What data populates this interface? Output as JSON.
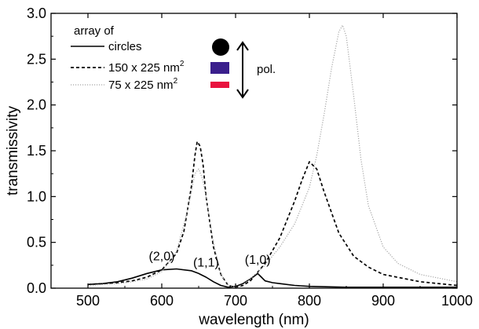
{
  "chart_data": {
    "type": "line",
    "title": "",
    "xlabel": "wavelength (nm)",
    "ylabel": "transmissivity",
    "xlim": [
      450,
      1000
    ],
    "ylim": [
      0,
      3.0
    ],
    "x_ticks": [
      500,
      600,
      700,
      800,
      900,
      1000
    ],
    "y_ticks": [
      0.0,
      0.5,
      1.0,
      1.5,
      2.0,
      2.5,
      3.0
    ],
    "x_tick_labels": [
      "500",
      "600",
      "700",
      "800",
      "900",
      "1000"
    ],
    "y_tick_labels": [
      "0.0",
      "0.5",
      "1.0",
      "1.5",
      "2.0",
      "2.5",
      "3.0"
    ],
    "grid": false,
    "legend_placement": "top-left",
    "legend": {
      "header": "array of",
      "entries": [
        {
          "label": "circles",
          "superscript": "",
          "style": "solid",
          "swatch": "circle",
          "swatch_color": "#000000"
        },
        {
          "label": "150 x 225 nm",
          "superscript": "2",
          "style": "dashed",
          "swatch": "rect",
          "swatch_color": "#3a1f8c"
        },
        {
          "label": "75 x 225 nm",
          "superscript": "2",
          "style": "dotted",
          "swatch": "bar",
          "swatch_color": "#e8133f"
        }
      ],
      "polarization_label": "pol."
    },
    "annotations": [
      {
        "text": "(2,0)",
        "x": 600,
        "y": 0.27
      },
      {
        "text": "(1,1)",
        "x": 660,
        "y": 0.2
      },
      {
        "text": "(1,0)",
        "x": 730,
        "y": 0.23
      }
    ],
    "series": [
      {
        "style": "solid",
        "color": "#000000",
        "x": [
          500,
          520,
          540,
          560,
          580,
          600,
          620,
          640,
          650,
          660,
          670,
          680,
          690,
          700,
          710,
          720,
          725,
          730,
          735,
          740,
          750,
          760,
          780,
          800,
          850,
          900,
          950,
          1000
        ],
        "y": [
          0.04,
          0.05,
          0.07,
          0.11,
          0.16,
          0.2,
          0.21,
          0.19,
          0.16,
          0.12,
          0.07,
          0.03,
          0.01,
          0.02,
          0.05,
          0.1,
          0.13,
          0.16,
          0.12,
          0.08,
          0.06,
          0.05,
          0.03,
          0.02,
          0.01,
          0.01,
          0.01,
          0.01
        ]
      },
      {
        "style": "dashed",
        "color": "#000000",
        "x": [
          500,
          520,
          540,
          560,
          580,
          600,
          620,
          630,
          640,
          645,
          648,
          652,
          656,
          660,
          670,
          680,
          690,
          700,
          710,
          720,
          740,
          760,
          780,
          790,
          800,
          810,
          820,
          840,
          860,
          880,
          900,
          950,
          1000
        ],
        "y": [
          0.04,
          0.05,
          0.06,
          0.08,
          0.12,
          0.2,
          0.38,
          0.62,
          1.1,
          1.45,
          1.6,
          1.55,
          1.35,
          1.0,
          0.45,
          0.15,
          0.03,
          0.01,
          0.03,
          0.08,
          0.27,
          0.55,
          0.95,
          1.18,
          1.38,
          1.3,
          1.05,
          0.6,
          0.35,
          0.23,
          0.15,
          0.07,
          0.03
        ]
      },
      {
        "style": "dotted",
        "color": "#a6a6a6",
        "x": [
          500,
          520,
          540,
          560,
          580,
          600,
          620,
          635,
          645,
          650,
          655,
          660,
          670,
          680,
          690,
          700,
          710,
          720,
          740,
          760,
          780,
          800,
          810,
          820,
          830,
          840,
          845,
          850,
          860,
          870,
          880,
          900,
          920,
          950,
          1000
        ],
        "y": [
          0.03,
          0.04,
          0.05,
          0.07,
          0.1,
          0.18,
          0.4,
          0.85,
          1.25,
          1.3,
          1.2,
          1.0,
          0.5,
          0.15,
          0.03,
          0.01,
          0.04,
          0.1,
          0.25,
          0.45,
          0.7,
          1.1,
          1.45,
          1.9,
          2.4,
          2.8,
          2.87,
          2.75,
          2.1,
          1.4,
          0.9,
          0.45,
          0.27,
          0.15,
          0.07
        ]
      }
    ]
  }
}
